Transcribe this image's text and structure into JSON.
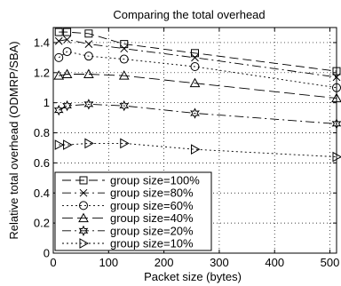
{
  "chart_data": {
    "type": "line",
    "title": "Comparing the total overhead",
    "xlabel": "Packet size (bytes)",
    "ylabel": "Relative total overhead (ODMRP/SBA)",
    "xlim": [
      0,
      512
    ],
    "ylim": [
      0,
      1.5
    ],
    "xticks": [
      0,
      100,
      200,
      300,
      400,
      500
    ],
    "yticks": [
      0,
      0.2,
      0.4,
      0.6,
      0.8,
      1.0,
      1.2,
      1.4
    ],
    "ytick_labels": [
      "0",
      "0.2",
      "0.4",
      "0.6",
      "0.8",
      "1",
      "1.2",
      "1.4"
    ],
    "grid": true,
    "legend_position": "bottom-left",
    "x": [
      10,
      25,
      64,
      128,
      256,
      512
    ],
    "series": [
      {
        "name": "group size=100%",
        "marker": "square",
        "dash": "10,5",
        "values": [
          1.47,
          1.47,
          1.46,
          1.39,
          1.33,
          1.21
        ]
      },
      {
        "name": "group size=80%",
        "marker": "x",
        "dash": "10,4,2,4",
        "values": [
          1.41,
          1.42,
          1.39,
          1.36,
          1.3,
          1.17
        ]
      },
      {
        "name": "group size=60%",
        "marker": "circle",
        "dash": "2,3",
        "values": [
          1.3,
          1.34,
          1.31,
          1.29,
          1.24,
          1.1
        ]
      },
      {
        "name": "group size=40%",
        "marker": "triangle-up",
        "dash": "12,5",
        "values": [
          1.18,
          1.19,
          1.19,
          1.18,
          1.13,
          1.03
        ]
      },
      {
        "name": "group size=20%",
        "marker": "star",
        "dash": "10,4,2,4",
        "values": [
          0.95,
          0.98,
          0.99,
          0.98,
          0.93,
          0.86
        ]
      },
      {
        "name": "group size=10%",
        "marker": "triangle-right",
        "dash": "2,3",
        "values": [
          0.72,
          0.72,
          0.73,
          0.73,
          0.69,
          0.64
        ]
      }
    ]
  }
}
